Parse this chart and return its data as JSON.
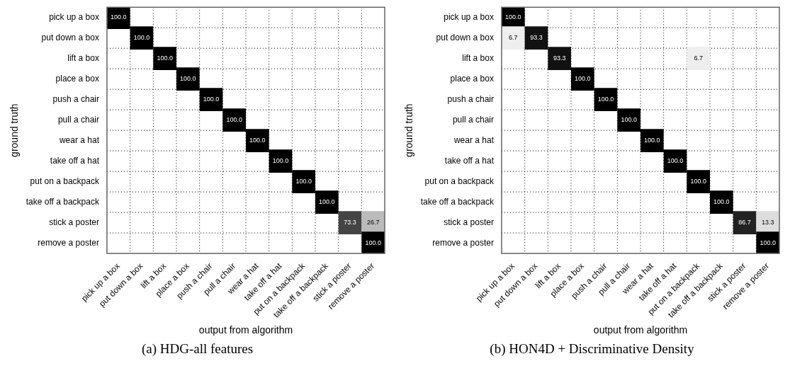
{
  "chart_data": [
    {
      "type": "heatmap",
      "title": "(a) HDG-all features",
      "xlabel": "output from algorithm",
      "ylabel": "ground truth",
      "grid": true,
      "categories": [
        "pick up a box",
        "put down a box",
        "lift a box",
        "place a box",
        "push a chair",
        "pull a chair",
        "wear a hat",
        "take off a hat",
        "put on a backpack",
        "take off a backpack",
        "stick a poster",
        "remove a poster"
      ],
      "y_categories": [
        "pick up a box",
        "put down a box",
        "lift a box",
        "place a box",
        "push a chair",
        "pull a chair",
        "wear a hat",
        "take off a hat",
        "put on a backpack",
        "take off a backpack",
        "stick a poster",
        "remove a poster"
      ],
      "cells": [
        [
          100,
          null,
          null,
          null,
          null,
          null,
          null,
          null,
          null,
          null,
          null,
          null
        ],
        [
          null,
          100,
          null,
          null,
          null,
          null,
          null,
          null,
          null,
          null,
          null,
          null
        ],
        [
          null,
          null,
          100,
          null,
          null,
          null,
          null,
          null,
          null,
          null,
          null,
          null
        ],
        [
          null,
          null,
          null,
          100,
          null,
          null,
          null,
          null,
          null,
          null,
          null,
          null
        ],
        [
          null,
          null,
          null,
          null,
          100,
          null,
          null,
          null,
          null,
          null,
          null,
          null
        ],
        [
          null,
          null,
          null,
          null,
          null,
          100,
          null,
          null,
          null,
          null,
          null,
          null
        ],
        [
          null,
          null,
          null,
          null,
          null,
          null,
          100,
          null,
          null,
          null,
          null,
          null
        ],
        [
          null,
          null,
          null,
          null,
          null,
          null,
          null,
          100,
          null,
          null,
          null,
          null
        ],
        [
          null,
          null,
          null,
          null,
          null,
          null,
          null,
          null,
          100,
          null,
          null,
          null
        ],
        [
          null,
          null,
          null,
          null,
          null,
          null,
          null,
          null,
          null,
          100,
          null,
          null
        ],
        [
          null,
          null,
          null,
          null,
          null,
          null,
          null,
          null,
          null,
          null,
          73.3,
          26.7
        ],
        [
          null,
          null,
          null,
          null,
          null,
          null,
          null,
          null,
          null,
          null,
          null,
          100
        ]
      ],
      "cell_labels": [
        [
          "100.0",
          null,
          null,
          null,
          null,
          null,
          null,
          null,
          null,
          null,
          null,
          null
        ],
        [
          null,
          "100.0",
          null,
          null,
          null,
          null,
          null,
          null,
          null,
          null,
          null,
          null
        ],
        [
          null,
          null,
          "100.0",
          null,
          null,
          null,
          null,
          null,
          null,
          null,
          null,
          null
        ],
        [
          null,
          null,
          null,
          "100.0",
          null,
          null,
          null,
          null,
          null,
          null,
          null,
          null
        ],
        [
          null,
          null,
          null,
          null,
          "100.0",
          null,
          null,
          null,
          null,
          null,
          null,
          null
        ],
        [
          null,
          null,
          null,
          null,
          null,
          "100.0",
          null,
          null,
          null,
          null,
          null,
          null
        ],
        [
          null,
          null,
          null,
          null,
          null,
          null,
          "100.0",
          null,
          null,
          null,
          null,
          null
        ],
        [
          null,
          null,
          null,
          null,
          null,
          null,
          null,
          "100.0",
          null,
          null,
          null,
          null
        ],
        [
          null,
          null,
          null,
          null,
          null,
          null,
          null,
          null,
          "100.0",
          null,
          null,
          null
        ],
        [
          null,
          null,
          null,
          null,
          null,
          null,
          null,
          null,
          null,
          "100.0",
          null,
          null
        ],
        [
          null,
          null,
          null,
          null,
          null,
          null,
          null,
          null,
          null,
          null,
          "73.3",
          "26.7"
        ],
        [
          null,
          null,
          null,
          null,
          null,
          null,
          null,
          null,
          null,
          null,
          null,
          "100.0"
        ]
      ]
    },
    {
      "type": "heatmap",
      "title": "(b) HON4D + Discriminative Density",
      "xlabel": "output from algorithm",
      "ylabel": "ground truth",
      "grid": true,
      "categories": [
        "pick up a box",
        "put down a box",
        "lift a box",
        "place a box",
        "push a chair",
        "pull a chair",
        "wear a hat",
        "take off a hat",
        "put on a backpack",
        "take off a backpack",
        "stick a poster",
        "remove a poster"
      ],
      "y_categories": [
        "pick up a box",
        "put down a box",
        "lift a box",
        "place a box",
        "push a chair",
        "pull a chair",
        "wear a hat",
        "take off a hat",
        "put on a backpack",
        "take off a backpack",
        "stick a poster",
        "remove a poster"
      ],
      "cells": [
        [
          100,
          null,
          null,
          null,
          null,
          null,
          null,
          null,
          null,
          null,
          null,
          null
        ],
        [
          6.7,
          93.3,
          null,
          null,
          null,
          null,
          null,
          null,
          null,
          null,
          null,
          null
        ],
        [
          null,
          null,
          93.3,
          null,
          null,
          null,
          null,
          null,
          6.7,
          null,
          null,
          null
        ],
        [
          null,
          null,
          null,
          100,
          null,
          null,
          null,
          null,
          null,
          null,
          null,
          null
        ],
        [
          null,
          null,
          null,
          null,
          100,
          null,
          null,
          null,
          null,
          null,
          null,
          null
        ],
        [
          null,
          null,
          null,
          null,
          null,
          100,
          null,
          null,
          null,
          null,
          null,
          null
        ],
        [
          null,
          null,
          null,
          null,
          null,
          null,
          100,
          null,
          null,
          null,
          null,
          null
        ],
        [
          null,
          null,
          null,
          null,
          null,
          null,
          null,
          100,
          null,
          null,
          null,
          null
        ],
        [
          null,
          null,
          null,
          null,
          null,
          null,
          null,
          null,
          100,
          null,
          null,
          null
        ],
        [
          null,
          null,
          null,
          null,
          null,
          null,
          null,
          null,
          null,
          100,
          null,
          null
        ],
        [
          null,
          null,
          null,
          null,
          null,
          null,
          null,
          null,
          null,
          null,
          86.7,
          13.3
        ],
        [
          null,
          null,
          null,
          null,
          null,
          null,
          null,
          null,
          null,
          null,
          null,
          100
        ]
      ],
      "cell_labels": [
        [
          "100.0",
          null,
          null,
          null,
          null,
          null,
          null,
          null,
          null,
          null,
          null,
          null
        ],
        [
          "6.7",
          "93.3",
          null,
          null,
          null,
          null,
          null,
          null,
          null,
          null,
          null,
          null
        ],
        [
          null,
          null,
          "93.3",
          null,
          null,
          null,
          null,
          null,
          "6.7",
          null,
          null,
          null
        ],
        [
          null,
          null,
          null,
          "100.0",
          null,
          null,
          null,
          null,
          null,
          null,
          null,
          null
        ],
        [
          null,
          null,
          null,
          null,
          "100.0",
          null,
          null,
          null,
          null,
          null,
          null,
          null
        ],
        [
          null,
          null,
          null,
          null,
          null,
          "100.0",
          null,
          null,
          null,
          null,
          null,
          null
        ],
        [
          null,
          null,
          null,
          null,
          null,
          null,
          "100.0",
          null,
          null,
          null,
          null,
          null
        ],
        [
          null,
          null,
          null,
          null,
          null,
          null,
          null,
          "100.0",
          null,
          null,
          null,
          null
        ],
        [
          null,
          null,
          null,
          null,
          null,
          null,
          null,
          null,
          "100.0",
          null,
          null,
          null
        ],
        [
          null,
          null,
          null,
          null,
          null,
          null,
          null,
          null,
          null,
          "100.0",
          null,
          null
        ],
        [
          null,
          null,
          null,
          null,
          null,
          null,
          null,
          null,
          null,
          null,
          "86.7",
          "13.3"
        ],
        [
          null,
          null,
          null,
          null,
          null,
          null,
          null,
          null,
          null,
          null,
          null,
          "100.0"
        ]
      ]
    }
  ]
}
